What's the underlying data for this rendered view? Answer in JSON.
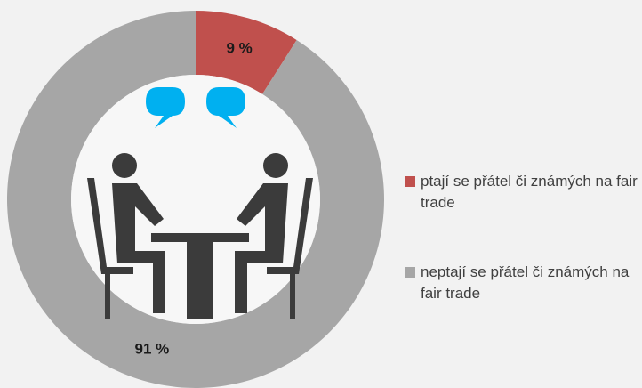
{
  "chart_data": {
    "type": "donut",
    "categories": [
      "ptají se přátel či známých na fair trade",
      "neptají se přátel či známých na fair trade"
    ],
    "values": [
      9,
      91
    ],
    "value_labels": [
      "9 %",
      "91 %"
    ],
    "colors": [
      "#c0504d",
      "#a6a6a6"
    ]
  }
}
